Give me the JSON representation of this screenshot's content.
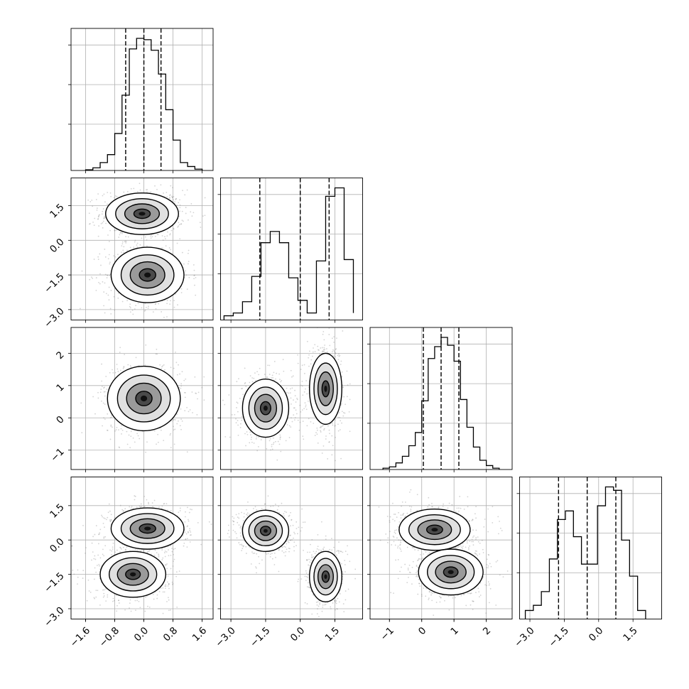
{
  "figure": {
    "type": "corner-plot",
    "background": "#ffffff",
    "grid": true,
    "colors": {
      "frame": "#000000",
      "grid": "#b0b0b0",
      "contour": "#000000",
      "scatter": "#808080",
      "fill": "#ffffff"
    }
  },
  "chart_data": {
    "type": "corner",
    "n_params": 4,
    "params": [
      {
        "index": 0,
        "range": [
          -2.0,
          1.9
        ],
        "ticks": [
          -1.6,
          -0.8,
          0.0,
          0.8,
          1.6
        ],
        "tick_labels": [
          "−1.6",
          "−0.8",
          "0.0",
          "0.8",
          "1.6"
        ],
        "quantiles": [
          -0.5,
          0.0,
          0.47
        ],
        "hist": {
          "bins": [
            -1.6,
            -1.4,
            -1.2,
            -1.0,
            -0.8,
            -0.6,
            -0.4,
            -0.2,
            0.0,
            0.2,
            0.4,
            0.6,
            0.8,
            1.0,
            1.2,
            1.4,
            1.6
          ],
          "counts": [
            0.005,
            0.02,
            0.06,
            0.12,
            0.28,
            0.57,
            0.92,
            1.0,
            0.99,
            0.91,
            0.73,
            0.46,
            0.23,
            0.06,
            0.03,
            0.01
          ]
        }
      },
      {
        "index": 1,
        "range": [
          -3.45,
          2.7
        ],
        "ticks": [
          -3.0,
          -1.5,
          0.0,
          1.5
        ],
        "tick_labels": [
          "−3.0",
          "−1.5",
          "0.0",
          "1.5"
        ],
        "quantiles": [
          -1.75,
          0.0,
          1.25
        ],
        "hist": {
          "bins": [
            -3.3,
            -2.9,
            -2.5,
            -2.1,
            -1.7,
            -1.3,
            -0.9,
            -0.5,
            -0.1,
            0.3,
            0.7,
            1.1,
            1.5,
            1.9,
            2.3
          ],
          "counts": [
            0.03,
            0.05,
            0.13,
            0.31,
            0.55,
            0.63,
            0.55,
            0.3,
            0.14,
            0.05,
            0.42,
            0.88,
            0.94,
            0.43,
            0.05
          ]
        }
      },
      {
        "index": 2,
        "range": [
          -1.6,
          2.8
        ],
        "ticks": [
          -1,
          0,
          1,
          2
        ],
        "tick_labels": [
          "−1",
          "0",
          "1",
          "2"
        ],
        "quantiles": [
          0.05,
          0.6,
          1.15
        ],
        "hist": {
          "bins": [
            -1.2,
            -1.0,
            -0.8,
            -0.6,
            -0.4,
            -0.2,
            0.0,
            0.2,
            0.4,
            0.6,
            0.8,
            1.0,
            1.2,
            1.4,
            1.6,
            1.8,
            2.0,
            2.2,
            2.4
          ],
          "counts": [
            0.01,
            0.02,
            0.05,
            0.1,
            0.18,
            0.28,
            0.52,
            0.84,
            0.93,
            1.0,
            0.94,
            0.82,
            0.53,
            0.32,
            0.17,
            0.07,
            0.03,
            0.01
          ]
        }
      },
      {
        "index": 3,
        "range": [
          -3.45,
          2.75
        ],
        "ticks": [
          -3.0,
          -1.5,
          0.0,
          1.5
        ],
        "tick_labels": [
          "−3.0",
          "−1.5",
          "0.0",
          "1.5"
        ],
        "quantiles": [
          -1.75,
          -0.5,
          0.75
        ],
        "hist": {
          "bins": [
            -3.2,
            -2.85,
            -2.5,
            -2.15,
            -1.8,
            -1.45,
            -1.1,
            -0.75,
            -0.4,
            -0.05,
            0.3,
            0.65,
            1.0,
            1.35,
            1.7,
            2.05
          ],
          "counts": [
            0.05,
            0.08,
            0.16,
            0.35,
            0.58,
            0.63,
            0.48,
            0.32,
            0.32,
            0.66,
            0.77,
            0.75,
            0.46,
            0.25,
            0.05
          ]
        }
      }
    ],
    "pairs": [
      {
        "x": 0,
        "y": 1,
        "modes": [
          {
            "x": -0.05,
            "y": 1.15,
            "sx": 0.5,
            "sy": 0.45
          },
          {
            "x": 0.1,
            "y": -1.5,
            "sx": 0.5,
            "sy": 0.6
          }
        ]
      },
      {
        "x": 0,
        "y": 2,
        "modes": [
          {
            "x": 0.0,
            "y": 0.6,
            "sx": 0.5,
            "sy": 0.5
          }
        ]
      },
      {
        "x": 1,
        "y": 2,
        "modes": [
          {
            "x": -1.5,
            "y": 0.3,
            "sx": 0.5,
            "sy": 0.45
          },
          {
            "x": 1.1,
            "y": 0.9,
            "sx": 0.35,
            "sy": 0.55
          }
        ]
      },
      {
        "x": 0,
        "y": 3,
        "modes": [
          {
            "x": 0.1,
            "y": 0.5,
            "sx": 0.5,
            "sy": 0.45
          },
          {
            "x": -0.3,
            "y": -1.5,
            "sx": 0.45,
            "sy": 0.5
          }
        ]
      },
      {
        "x": 1,
        "y": 3,
        "modes": [
          {
            "x": -1.5,
            "y": 0.4,
            "sx": 0.5,
            "sy": 0.45
          },
          {
            "x": 1.1,
            "y": -1.6,
            "sx": 0.35,
            "sy": 0.55
          }
        ]
      },
      {
        "x": 2,
        "y": 3,
        "modes": [
          {
            "x": 0.4,
            "y": 0.45,
            "sx": 0.55,
            "sy": 0.45
          },
          {
            "x": 0.9,
            "y": -1.4,
            "sx": 0.5,
            "sy": 0.5
          }
        ]
      }
    ]
  }
}
